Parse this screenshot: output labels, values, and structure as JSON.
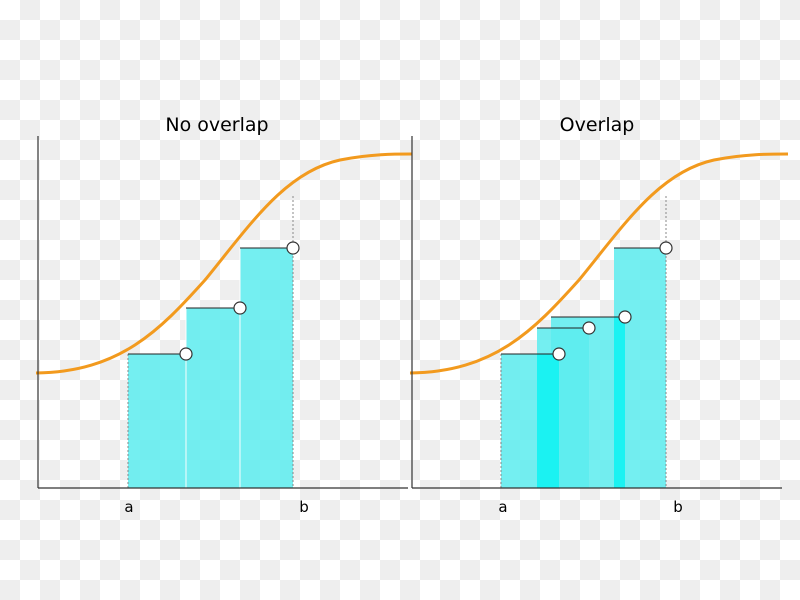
{
  "colors": {
    "curve": "#f29a1e",
    "bar_fill": "#5cecef",
    "bar_fill_overlap": "#14f2f2",
    "axis": "#333333",
    "marker_fill": "#ffffff",
    "marker_stroke": "#333333"
  },
  "panels": [
    {
      "title": "No overlap",
      "x_labels": {
        "a": "a",
        "b": "b"
      },
      "bars": [
        {
          "from": 0.0,
          "to": 0.34,
          "height": 0.31
        },
        {
          "from": 0.34,
          "to": 0.66,
          "height": 0.51
        },
        {
          "from": 0.66,
          "to": 1.0,
          "height": 0.7
        }
      ]
    },
    {
      "title": "Overlap",
      "x_labels": {
        "a": "a",
        "b": "b"
      },
      "bars": [
        {
          "from": 0.0,
          "to": 0.34,
          "height": 0.31
        },
        {
          "from": 0.22,
          "to": 0.58,
          "height": 0.43
        },
        {
          "from": 0.56,
          "to": 0.78,
          "height": 0.46
        },
        {
          "from": 0.78,
          "to": 1.0,
          "height": 0.7
        }
      ]
    }
  ]
}
